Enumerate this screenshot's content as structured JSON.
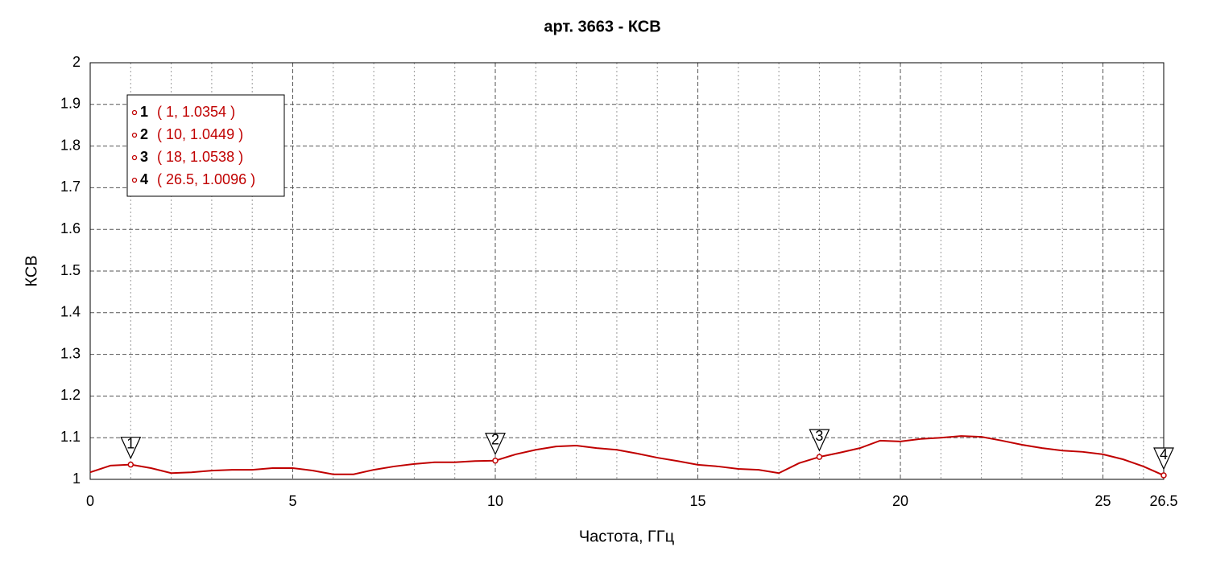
{
  "chart_data": {
    "type": "line",
    "title": "арт. 3663 - КСВ",
    "xlabel": "Частота, ГГц",
    "ylabel": "КСВ",
    "x": [
      0,
      0.5,
      1,
      1.5,
      2,
      2.5,
      3,
      3.5,
      4,
      4.5,
      5,
      5.5,
      6,
      6.5,
      7,
      7.5,
      8,
      8.5,
      9,
      9.5,
      10,
      10.5,
      11,
      11.5,
      12,
      12.5,
      13,
      13.5,
      14,
      14.5,
      15,
      15.5,
      16,
      16.5,
      17,
      17.5,
      18,
      18.5,
      19,
      19.5,
      20,
      20.5,
      21,
      21.5,
      22,
      22.5,
      23,
      23.5,
      24,
      24.5,
      25,
      25.5,
      26,
      26.5
    ],
    "series": [
      {
        "color": "#c00000",
        "values": [
          1.017,
          1.033,
          1.0354,
          1.027,
          1.015,
          1.017,
          1.021,
          1.023,
          1.023,
          1.027,
          1.027,
          1.021,
          1.012,
          1.012,
          1.023,
          1.031,
          1.037,
          1.041,
          1.041,
          1.044,
          1.0449,
          1.06,
          1.071,
          1.079,
          1.081,
          1.075,
          1.071,
          1.062,
          1.052,
          1.044,
          1.035,
          1.031,
          1.025,
          1.023,
          1.015,
          1.039,
          1.0538,
          1.064,
          1.075,
          1.093,
          1.091,
          1.097,
          1.1,
          1.104,
          1.102,
          1.093,
          1.083,
          1.075,
          1.069,
          1.066,
          1.06,
          1.048,
          1.031,
          1.0096
        ]
      }
    ],
    "markers": [
      {
        "label": "1",
        "x": 1,
        "y": 1.0354,
        "text": "( 1, 1.0354 )"
      },
      {
        "label": "2",
        "x": 10,
        "y": 1.0449,
        "text": "( 10, 1.0449 )"
      },
      {
        "label": "3",
        "x": 18,
        "y": 1.0538,
        "text": "( 18, 1.0538 )"
      },
      {
        "label": "4",
        "x": 26.5,
        "y": 1.0096,
        "text": "( 26.5, 1.0096 )"
      }
    ],
    "xlim": [
      0,
      26.5
    ],
    "xticks": [
      0,
      5,
      10,
      15,
      20,
      25,
      26.5
    ],
    "xminorticks": [
      1,
      2,
      3,
      4,
      6,
      7,
      8,
      9,
      11,
      12,
      13,
      14,
      16,
      17,
      18,
      19,
      21,
      22,
      23,
      24,
      26
    ],
    "ylim": [
      1,
      2
    ],
    "yticks": [
      1,
      1.1,
      1.2,
      1.3,
      1.4,
      1.5,
      1.6,
      1.7,
      1.8,
      1.9,
      2
    ],
    "grid": true
  }
}
